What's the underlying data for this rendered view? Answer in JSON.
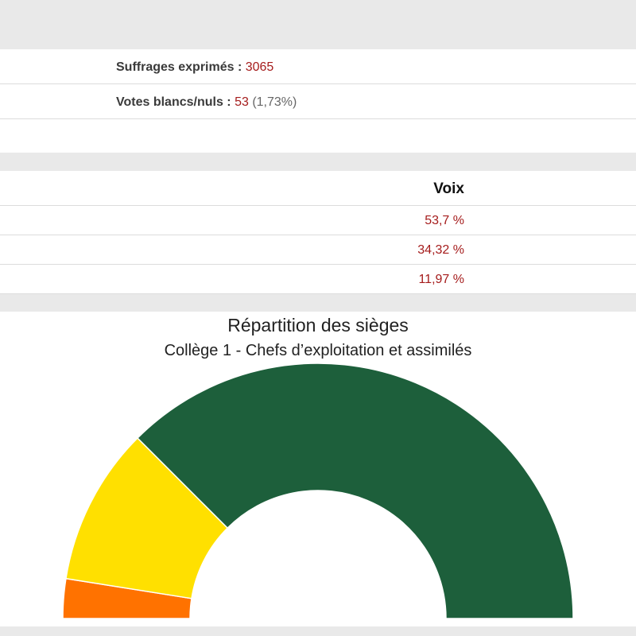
{
  "stats": {
    "suffrages_label": "Suffrages exprimés :",
    "suffrages_value": "3065",
    "blancs_label": "Votes blancs/nuls :",
    "blancs_value": "53",
    "blancs_pct": "(1,73%)"
  },
  "results": {
    "header": "Voix",
    "rows": [
      "53,7 %",
      "34,32 %",
      "11,97 %"
    ]
  },
  "chart_data": {
    "type": "pie",
    "variant": "semi-circle (parliament / donut half)",
    "title": "Répartition des sièges",
    "subtitle": "Collège 1 - Chefs d’exploitation et assimilés",
    "slices": [
      {
        "value": 5.0,
        "color": "#ff7200"
      },
      {
        "value": 20.0,
        "color": "#ffe000"
      },
      {
        "value": 75.0,
        "color": "#1d5f3b"
      }
    ],
    "start": "left",
    "end": "right"
  }
}
